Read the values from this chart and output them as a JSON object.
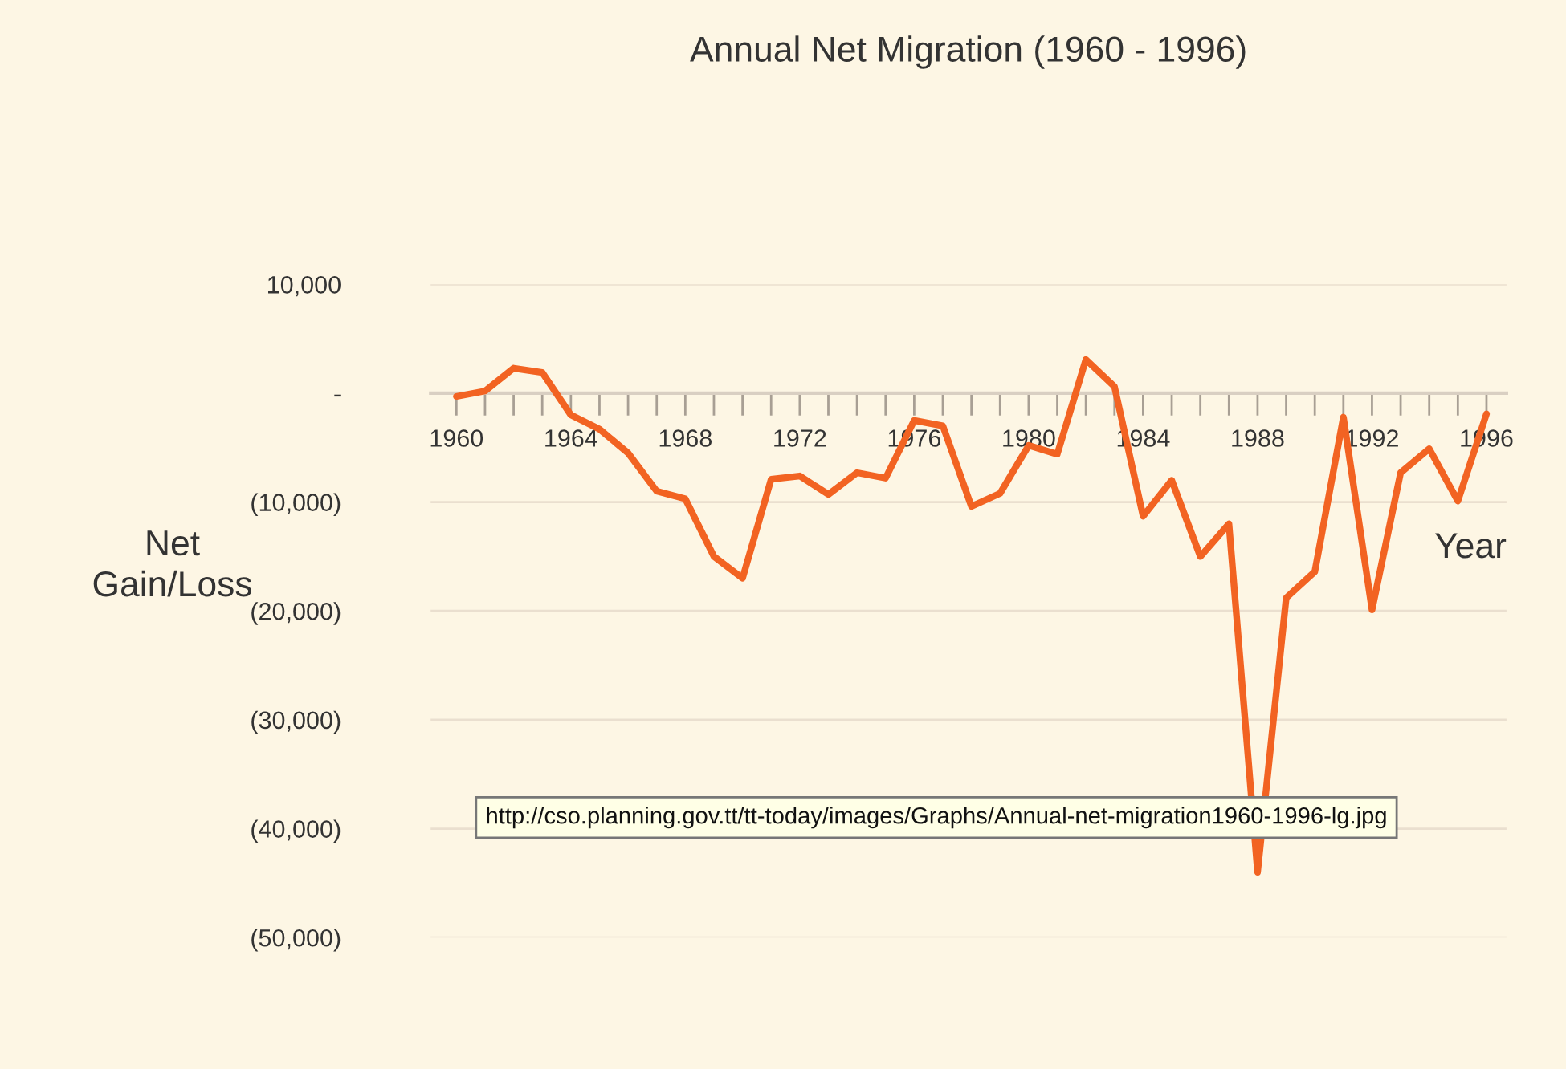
{
  "chart_data": {
    "type": "line",
    "title": "Annual Net Migration (1960 - 1996)",
    "xlabel": "Year",
    "ylabel": "Net\nGain/Loss",
    "x": [
      1960,
      1961,
      1962,
      1963,
      1964,
      1965,
      1966,
      1967,
      1968,
      1969,
      1970,
      1971,
      1972,
      1973,
      1974,
      1975,
      1976,
      1977,
      1978,
      1979,
      1980,
      1981,
      1982,
      1983,
      1984,
      1985,
      1986,
      1987,
      1988,
      1989,
      1990,
      1991,
      1992,
      1993,
      1994,
      1995,
      1996
    ],
    "series": [
      {
        "color": "#f26322",
        "values": [
          -300,
          200,
          2300,
          1900,
          -2000,
          -3300,
          -5500,
          -9000,
          -9700,
          -15000,
          -17000,
          -7900,
          -7600,
          -9300,
          -7300,
          -7800,
          -2500,
          -3000,
          -10400,
          -9200,
          -4800,
          -5600,
          3100,
          600,
          -11300,
          -8000,
          -15000,
          -12000,
          -44000,
          -18800,
          -16400,
          -2200,
          -19900,
          -7300,
          -5100,
          -9900,
          -1900
        ]
      }
    ],
    "xlim": [
      1959.1,
      1996.7
    ],
    "xticks": [
      {
        "value": 1960,
        "label": "1960"
      },
      {
        "value": 1961,
        "label": null
      },
      {
        "value": 1962,
        "label": null
      },
      {
        "value": 1963,
        "label": null
      },
      {
        "value": 1964,
        "label": "1964"
      },
      {
        "value": 1965,
        "label": null
      },
      {
        "value": 1966,
        "label": null
      },
      {
        "value": 1967,
        "label": null
      },
      {
        "value": 1968,
        "label": "1968"
      },
      {
        "value": 1969,
        "label": null
      },
      {
        "value": 1970,
        "label": null
      },
      {
        "value": 1971,
        "label": null
      },
      {
        "value": 1972,
        "label": "1972"
      },
      {
        "value": 1973,
        "label": null
      },
      {
        "value": 1974,
        "label": null
      },
      {
        "value": 1975,
        "label": null
      },
      {
        "value": 1976,
        "label": "1976"
      },
      {
        "value": 1977,
        "label": null
      },
      {
        "value": 1978,
        "label": null
      },
      {
        "value": 1979,
        "label": null
      },
      {
        "value": 1980,
        "label": "1980"
      },
      {
        "value": 1981,
        "label": null
      },
      {
        "value": 1982,
        "label": null
      },
      {
        "value": 1983,
        "label": null
      },
      {
        "value": 1984,
        "label": "1984"
      },
      {
        "value": 1985,
        "label": null
      },
      {
        "value": 1986,
        "label": null
      },
      {
        "value": 1987,
        "label": null
      },
      {
        "value": 1988,
        "label": "1988"
      },
      {
        "value": 1989,
        "label": null
      },
      {
        "value": 1990,
        "label": null
      },
      {
        "value": 1991,
        "label": null
      },
      {
        "value": 1992,
        "label": "1992"
      },
      {
        "value": 1993,
        "label": null
      },
      {
        "value": 1994,
        "label": null
      },
      {
        "value": 1995,
        "label": null
      },
      {
        "value": 1996,
        "label": "1996"
      }
    ],
    "ylim": [
      -50000,
      10000
    ],
    "yticks": [
      {
        "value": 10000,
        "label": "10,000"
      },
      {
        "value": 0,
        "label": "-"
      },
      {
        "value": -10000,
        "label": "(10,000)"
      },
      {
        "value": -20000,
        "label": "(20,000)"
      },
      {
        "value": -30000,
        "label": "(30,000)"
      },
      {
        "value": -40000,
        "label": "(40,000)"
      },
      {
        "value": -50000,
        "label": "(50,000)"
      }
    ],
    "grid": "y",
    "line_style": "solid",
    "marker": "none",
    "annotations": [
      "http://cso.planning.gov.tt/tt-today/images/Graphs/Annual-net-migration1960-1996-lg.jpg"
    ]
  }
}
